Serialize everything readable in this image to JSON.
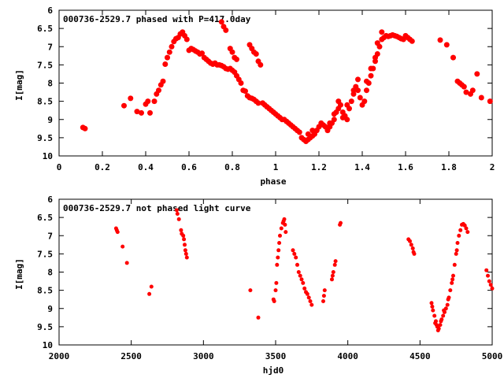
{
  "chart_data": [
    {
      "type": "scatter",
      "title": "000736-2529.7 phased with P=417.0day",
      "xlabel": "phase",
      "ylabel": "I[mag]",
      "xlim": [
        0,
        2
      ],
      "ylim": [
        6,
        10
      ],
      "y_inverted": true,
      "grid": false,
      "color": "#ff0000",
      "xticks": [
        "0",
        "0.2",
        "0.4",
        "0.6",
        "0.8",
        "1",
        "1.2",
        "1.4",
        "1.6",
        "1.8",
        "2"
      ],
      "yticks": [
        "6",
        "6.5",
        "7",
        "7.5",
        "8",
        "8.5",
        "9",
        "9.5",
        "10"
      ],
      "points": [
        [
          0.11,
          9.22
        ],
        [
          0.12,
          9.25
        ],
        [
          0.3,
          8.62
        ],
        [
          0.33,
          8.42
        ],
        [
          0.36,
          8.78
        ],
        [
          0.38,
          8.82
        ],
        [
          0.4,
          8.58
        ],
        [
          0.41,
          8.5
        ],
        [
          0.42,
          8.82
        ],
        [
          0.44,
          8.5
        ],
        [
          0.45,
          8.3
        ],
        [
          0.46,
          8.2
        ],
        [
          0.47,
          8.05
        ],
        [
          0.48,
          7.95
        ],
        [
          0.49,
          7.48
        ],
        [
          0.5,
          7.3
        ],
        [
          0.51,
          7.15
        ],
        [
          0.52,
          7.0
        ],
        [
          0.53,
          6.86
        ],
        [
          0.54,
          6.78
        ],
        [
          0.55,
          6.75
        ],
        [
          0.56,
          6.65
        ],
        [
          0.57,
          6.6
        ],
        [
          0.58,
          6.7
        ],
        [
          0.59,
          6.8
        ],
        [
          0.6,
          7.1
        ],
        [
          0.61,
          7.05
        ],
        [
          0.62,
          7.08
        ],
        [
          0.63,
          7.12
        ],
        [
          0.64,
          7.15
        ],
        [
          0.65,
          7.2
        ],
        [
          0.66,
          7.18
        ],
        [
          0.67,
          7.3
        ],
        [
          0.68,
          7.35
        ],
        [
          0.69,
          7.4
        ],
        [
          0.7,
          7.45
        ],
        [
          0.71,
          7.48
        ],
        [
          0.72,
          7.45
        ],
        [
          0.73,
          7.5
        ],
        [
          0.74,
          7.5
        ],
        [
          0.75,
          7.52
        ],
        [
          0.76,
          7.55
        ],
        [
          0.77,
          7.6
        ],
        [
          0.78,
          7.62
        ],
        [
          0.79,
          7.6
        ],
        [
          0.8,
          7.65
        ],
        [
          0.81,
          7.7
        ],
        [
          0.82,
          7.8
        ],
        [
          0.83,
          7.9
        ],
        [
          0.84,
          8.0
        ],
        [
          0.75,
          6.32
        ],
        [
          0.76,
          6.45
        ],
        [
          0.77,
          6.55
        ],
        [
          0.79,
          7.05
        ],
        [
          0.8,
          7.15
        ],
        [
          0.81,
          7.3
        ],
        [
          0.82,
          7.35
        ],
        [
          0.85,
          8.2
        ],
        [
          0.86,
          8.22
        ],
        [
          0.87,
          8.35
        ],
        [
          0.88,
          8.4
        ],
        [
          0.89,
          8.42
        ],
        [
          0.9,
          8.45
        ],
        [
          0.91,
          8.5
        ],
        [
          0.92,
          8.55
        ],
        [
          0.88,
          6.95
        ],
        [
          0.89,
          7.05
        ],
        [
          0.9,
          7.15
        ],
        [
          0.91,
          7.2
        ],
        [
          0.92,
          7.4
        ],
        [
          0.93,
          7.5
        ],
        [
          0.94,
          8.55
        ],
        [
          0.95,
          8.6
        ],
        [
          0.96,
          8.65
        ],
        [
          0.97,
          8.7
        ],
        [
          0.98,
          8.75
        ],
        [
          0.99,
          8.8
        ],
        [
          1.0,
          8.85
        ],
        [
          1.01,
          8.9
        ],
        [
          1.02,
          8.95
        ],
        [
          1.03,
          9.0
        ],
        [
          1.04,
          9.0
        ],
        [
          1.05,
          9.05
        ],
        [
          1.06,
          9.1
        ],
        [
          1.07,
          9.15
        ],
        [
          1.08,
          9.2
        ],
        [
          1.09,
          9.25
        ],
        [
          1.1,
          9.3
        ],
        [
          1.11,
          9.35
        ],
        [
          1.12,
          9.5
        ],
        [
          1.13,
          9.55
        ],
        [
          1.14,
          9.6
        ],
        [
          1.15,
          9.55
        ],
        [
          1.16,
          9.5
        ],
        [
          1.17,
          9.45
        ],
        [
          1.18,
          9.4
        ],
        [
          1.19,
          9.3
        ],
        [
          1.2,
          9.2
        ],
        [
          1.21,
          9.1
        ],
        [
          1.22,
          9.15
        ],
        [
          1.23,
          9.2
        ],
        [
          1.24,
          9.3
        ],
        [
          1.25,
          9.2
        ],
        [
          1.26,
          9.1
        ],
        [
          1.27,
          9.0
        ],
        [
          1.28,
          8.8
        ],
        [
          1.29,
          8.7
        ],
        [
          1.3,
          8.6
        ],
        [
          1.31,
          8.8
        ],
        [
          1.32,
          8.9
        ],
        [
          1.33,
          9.0
        ],
        [
          1.34,
          8.7
        ],
        [
          1.35,
          8.5
        ],
        [
          1.36,
          8.3
        ],
        [
          1.37,
          8.1
        ],
        [
          1.38,
          8.2
        ],
        [
          1.39,
          8.4
        ],
        [
          1.4,
          8.6
        ],
        [
          1.41,
          8.5
        ],
        [
          1.42,
          8.2
        ],
        [
          1.43,
          8.0
        ],
        [
          1.44,
          7.8
        ],
        [
          1.45,
          7.6
        ],
        [
          1.46,
          7.4
        ],
        [
          1.47,
          7.2
        ],
        [
          1.48,
          7.0
        ],
        [
          1.49,
          6.8
        ],
        [
          1.5,
          6.75
        ],
        [
          1.51,
          6.7
        ],
        [
          1.52,
          6.72
        ],
        [
          1.53,
          6.7
        ],
        [
          1.54,
          6.68
        ],
        [
          1.55,
          6.7
        ],
        [
          1.56,
          6.72
        ],
        [
          1.57,
          6.75
        ],
        [
          1.58,
          6.78
        ],
        [
          1.59,
          6.8
        ],
        [
          1.6,
          6.7
        ],
        [
          1.61,
          6.75
        ],
        [
          1.62,
          6.8
        ],
        [
          1.63,
          6.85
        ],
        [
          1.76,
          6.82
        ],
        [
          1.79,
          6.95
        ],
        [
          1.82,
          7.3
        ],
        [
          1.84,
          7.95
        ],
        [
          1.85,
          8.0
        ],
        [
          1.86,
          8.05
        ],
        [
          1.87,
          8.1
        ],
        [
          1.88,
          8.25
        ],
        [
          1.9,
          8.3
        ],
        [
          1.91,
          8.2
        ],
        [
          1.93,
          7.75
        ],
        [
          1.95,
          8.4
        ],
        [
          1.99,
          8.5
        ],
        [
          1.36,
          8.2
        ],
        [
          1.38,
          7.9
        ],
        [
          1.42,
          7.95
        ],
        [
          1.44,
          7.6
        ],
        [
          1.46,
          7.3
        ],
        [
          1.47,
          6.9
        ],
        [
          1.49,
          6.6
        ],
        [
          1.33,
          8.6
        ],
        [
          1.31,
          8.95
        ],
        [
          1.29,
          8.5
        ],
        [
          1.27,
          8.85
        ],
        [
          1.25,
          9.1
        ],
        [
          1.15,
          9.4
        ],
        [
          1.17,
          9.3
        ]
      ]
    },
    {
      "type": "scatter",
      "title": "000736-2529.7 not phased light curve",
      "xlabel": "hjd0",
      "ylabel": "I[mag]",
      "xlim": [
        2000,
        5000
      ],
      "ylim": [
        6,
        10
      ],
      "y_inverted": true,
      "grid": false,
      "color": "#ff0000",
      "xticks": [
        "2000",
        "2500",
        "3000",
        "3500",
        "4000",
        "4500",
        "5000"
      ],
      "yticks": [
        "6",
        "6.5",
        "7",
        "7.5",
        "8",
        "8.5",
        "9",
        "9.5",
        "10"
      ],
      "points": [
        [
          2395,
          6.8
        ],
        [
          2400,
          6.85
        ],
        [
          2405,
          6.9
        ],
        [
          2440,
          7.3
        ],
        [
          2470,
          7.75
        ],
        [
          2625,
          8.6
        ],
        [
          2640,
          8.4
        ],
        [
          2815,
          6.3
        ],
        [
          2820,
          6.4
        ],
        [
          2830,
          6.55
        ],
        [
          2845,
          6.85
        ],
        [
          2850,
          6.95
        ],
        [
          2860,
          7.0
        ],
        [
          2865,
          7.1
        ],
        [
          2870,
          7.25
        ],
        [
          2875,
          7.4
        ],
        [
          2880,
          7.5
        ],
        [
          2885,
          7.6
        ],
        [
          3325,
          8.5
        ],
        [
          3380,
          9.25
        ],
        [
          3485,
          8.75
        ],
        [
          3490,
          8.8
        ],
        [
          3500,
          8.5
        ],
        [
          3505,
          8.3
        ],
        [
          3510,
          7.8
        ],
        [
          3515,
          7.6
        ],
        [
          3520,
          7.4
        ],
        [
          3525,
          7.2
        ],
        [
          3530,
          7.0
        ],
        [
          3540,
          6.8
        ],
        [
          3550,
          6.65
        ],
        [
          3555,
          6.6
        ],
        [
          3560,
          6.55
        ],
        [
          3565,
          6.7
        ],
        [
          3570,
          6.9
        ],
        [
          3620,
          7.4
        ],
        [
          3630,
          7.5
        ],
        [
          3640,
          7.6
        ],
        [
          3650,
          7.8
        ],
        [
          3660,
          8.0
        ],
        [
          3670,
          8.1
        ],
        [
          3680,
          8.2
        ],
        [
          3690,
          8.3
        ],
        [
          3700,
          8.45
        ],
        [
          3710,
          8.55
        ],
        [
          3720,
          8.6
        ],
        [
          3730,
          8.7
        ],
        [
          3740,
          8.8
        ],
        [
          3750,
          8.9
        ],
        [
          3830,
          8.8
        ],
        [
          3835,
          8.65
        ],
        [
          3840,
          8.5
        ],
        [
          3890,
          8.2
        ],
        [
          3895,
          8.1
        ],
        [
          3900,
          8.0
        ],
        [
          3910,
          7.8
        ],
        [
          3915,
          7.7
        ],
        [
          3945,
          6.7
        ],
        [
          3950,
          6.65
        ],
        [
          4420,
          7.1
        ],
        [
          4430,
          7.15
        ],
        [
          4440,
          7.25
        ],
        [
          4450,
          7.35
        ],
        [
          4455,
          7.45
        ],
        [
          4460,
          7.5
        ],
        [
          4580,
          8.85
        ],
        [
          4585,
          8.95
        ],
        [
          4590,
          9.05
        ],
        [
          4600,
          9.2
        ],
        [
          4610,
          9.35
        ],
        [
          4620,
          9.5
        ],
        [
          4625,
          9.6
        ],
        [
          4630,
          9.55
        ],
        [
          4640,
          9.45
        ],
        [
          4650,
          9.3
        ],
        [
          4660,
          9.2
        ],
        [
          4670,
          9.1
        ],
        [
          4680,
          9.0
        ],
        [
          4690,
          8.9
        ],
        [
          4700,
          8.7
        ],
        [
          4710,
          8.5
        ],
        [
          4720,
          8.3
        ],
        [
          4730,
          8.1
        ],
        [
          4740,
          7.8
        ],
        [
          4750,
          7.5
        ],
        [
          4760,
          7.2
        ],
        [
          4770,
          7.0
        ],
        [
          4780,
          6.85
        ],
        [
          4790,
          6.7
        ],
        [
          4800,
          6.68
        ],
        [
          4810,
          6.72
        ],
        [
          4820,
          6.8
        ],
        [
          4830,
          6.9
        ],
        [
          4960,
          7.95
        ],
        [
          4970,
          8.1
        ],
        [
          4980,
          8.25
        ],
        [
          4990,
          8.35
        ],
        [
          5000,
          8.45
        ],
        [
          4605,
          9.4
        ],
        [
          4615,
          9.45
        ],
        [
          4645,
          9.35
        ],
        [
          4665,
          9.05
        ],
        [
          4695,
          8.75
        ],
        [
          4725,
          8.2
        ],
        [
          4755,
          7.4
        ]
      ]
    }
  ]
}
